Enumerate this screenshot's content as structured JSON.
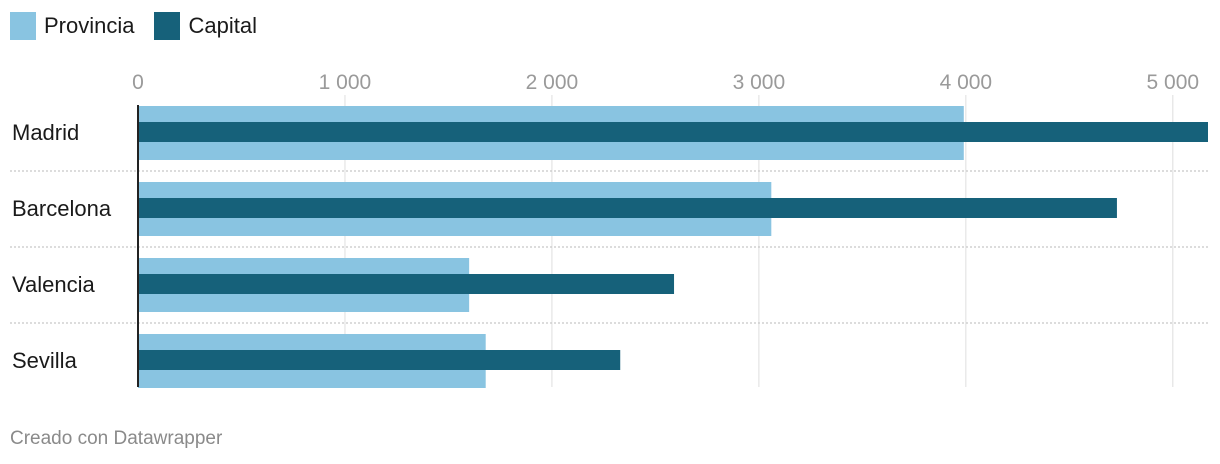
{
  "chart_data": {
    "type": "bar",
    "orientation": "horizontal",
    "categories": [
      "Madrid",
      "Barcelona",
      "Valencia",
      "Sevilla"
    ],
    "series": [
      {
        "name": "Provincia",
        "color": "#89c4e1",
        "values": [
          3990,
          3060,
          1600,
          1680
        ]
      },
      {
        "name": "Capital",
        "color": "#16617a",
        "values": [
          5170,
          4730,
          2590,
          2330
        ]
      }
    ],
    "xticks": [
      0,
      1000,
      2000,
      3000,
      4000,
      5000
    ],
    "xtick_labels": [
      "0",
      "1 000",
      "2 000",
      "3 000",
      "4 000",
      "5 000"
    ],
    "xlim": [
      0,
      5170
    ],
    "grid": true,
    "legend_position": "top-left"
  },
  "legend": {
    "provincia_label": "Provincia",
    "capital_label": "Capital"
  },
  "footer": {
    "credit": "Creado con Datawrapper"
  }
}
